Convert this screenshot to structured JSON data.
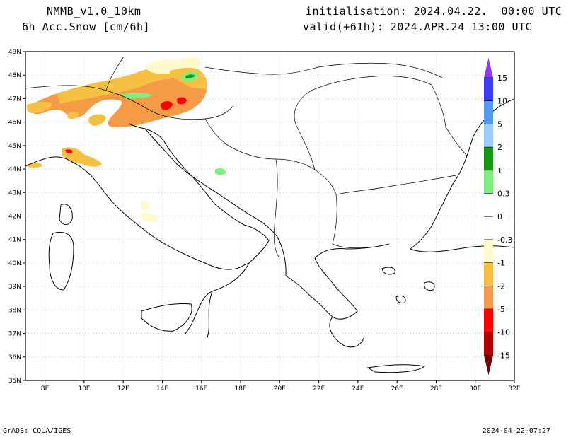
{
  "header": {
    "model": "NMMB_v1.0_10km",
    "field": "6h Acc.Snow [cm/6h]",
    "init": "initialisation: 2024.04.22.  00:00 UTC",
    "valid": "valid(+61h): 2024.APR.24 13:00 UTC"
  },
  "footer": {
    "credit": "GrADS: COLA/IGES",
    "timestamp": "2024-04-22-07:27"
  },
  "map": {
    "lon_range": [
      7,
      32
    ],
    "lat_range": [
      35,
      49
    ],
    "lat_labels": [
      "49N",
      "48N",
      "47N",
      "46N",
      "45N",
      "44N",
      "43N",
      "42N",
      "41N",
      "40N",
      "39N",
      "38N",
      "37N",
      "36N",
      "35N"
    ],
    "lon_labels": [
      "8E",
      "10E",
      "12E",
      "14E",
      "16E",
      "18E",
      "20E",
      "22E",
      "24E",
      "26E",
      "28E",
      "30E",
      "32E"
    ]
  },
  "colorbar": {
    "labels": [
      "15",
      "10",
      "5",
      "2",
      "1",
      "0.3",
      "0",
      "-0.3",
      "-1",
      "-2",
      "-5",
      "-10",
      "-15"
    ],
    "colors": {
      "top_arrow": "#9933ff",
      "c15": "#3d3dff",
      "c10": "#5599ee",
      "c5": "#99ccff",
      "c2": "#149914",
      "c1": "#7fee7f",
      "c0": "#ffffff",
      "n03": "#fffacd",
      "n1": "#f6c142",
      "n2": "#f59b48",
      "n5": "#ff0000",
      "n10": "#b40000",
      "bottom_arrow": "#7a0000"
    }
  }
}
